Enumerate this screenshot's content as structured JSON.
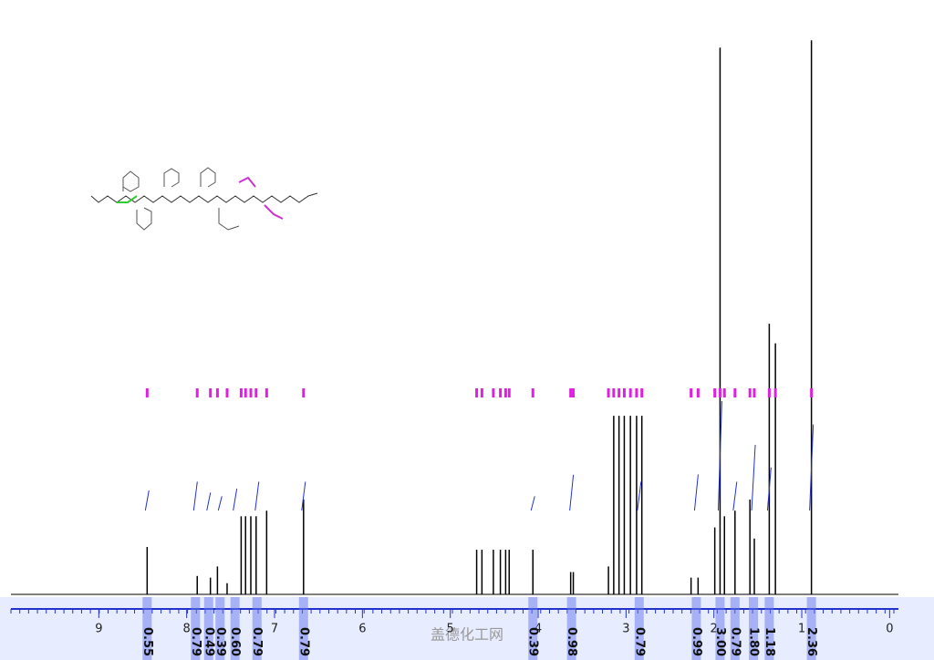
{
  "chart_data": {
    "type": "nmr",
    "x": [
      8.45,
      7.88,
      7.73,
      7.65,
      7.54,
      7.38,
      7.33,
      7.27,
      7.21,
      7.09,
      6.67,
      4.7,
      4.64,
      4.51,
      4.43,
      4.37,
      4.33,
      4.06,
      3.63,
      3.6,
      3.2,
      3.14,
      3.08,
      3.02,
      2.95,
      2.88,
      2.82,
      2.26,
      2.18,
      1.99,
      1.93,
      1.88,
      1.76,
      1.59,
      1.54,
      1.37,
      1.3,
      0.89
    ],
    "values": [
      8.5,
      3.3,
      3,
      5,
      2,
      14,
      14,
      14,
      14,
      15,
      17,
      8,
      8,
      8,
      8,
      8,
      8,
      8,
      4,
      4,
      5,
      32,
      32,
      32,
      32,
      32,
      32,
      3,
      3,
      12,
      98,
      14,
      15,
      17,
      10,
      48.5,
      45,
      99.3
    ],
    "color": "#000000",
    "xlim": [
      10.0,
      -0.1
    ],
    "ylim": [
      0,
      100
    ],
    "xticks": [
      9,
      8,
      7,
      6,
      5,
      4,
      3,
      2,
      1,
      0
    ],
    "integrals": {
      "x": [
        8.45,
        7.9,
        7.75,
        7.62,
        7.45,
        7.2,
        6.67,
        4.06,
        3.62,
        2.85,
        2.2,
        1.93,
        1.76,
        1.55,
        1.37,
        0.89
      ],
      "values": [
        0.55,
        0.79,
        0.49,
        0.39,
        0.6,
        0.79,
        0.79,
        0.39,
        0.98,
        0.79,
        0.99,
        3,
        0.79,
        1.8,
        1.18,
        2.36
      ],
      "value_labels": [
        "0.55",
        "0.79",
        "0.49",
        "0.39",
        "0.60",
        "0.79",
        "0.79",
        "0.39",
        "0.98",
        "0.79",
        "0.99",
        "3.00",
        "0.79",
        "1.80",
        "1.18",
        "2.36"
      ],
      "color": "#2233cc"
    },
    "watermark": "盖德化工网"
  }
}
